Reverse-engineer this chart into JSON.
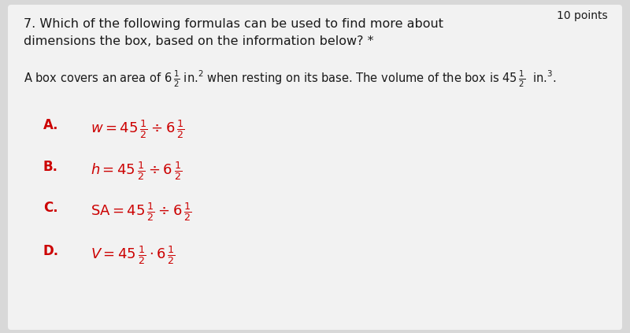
{
  "bg_color": "#d8d8d8",
  "card_color": "#f2f2f2",
  "title_line1": "7. Which of the following formulas can be used to find more about",
  "title_line2": "dimensions the box, based on the information below? *",
  "points_text": "10 points",
  "option_color": "#cc0000",
  "text_color": "#1a1a1a",
  "title_fontsize": 11.5,
  "points_fontsize": 10,
  "info_fontsize": 10.5,
  "option_letter_fontsize": 12,
  "option_formula_fontsize": 13
}
